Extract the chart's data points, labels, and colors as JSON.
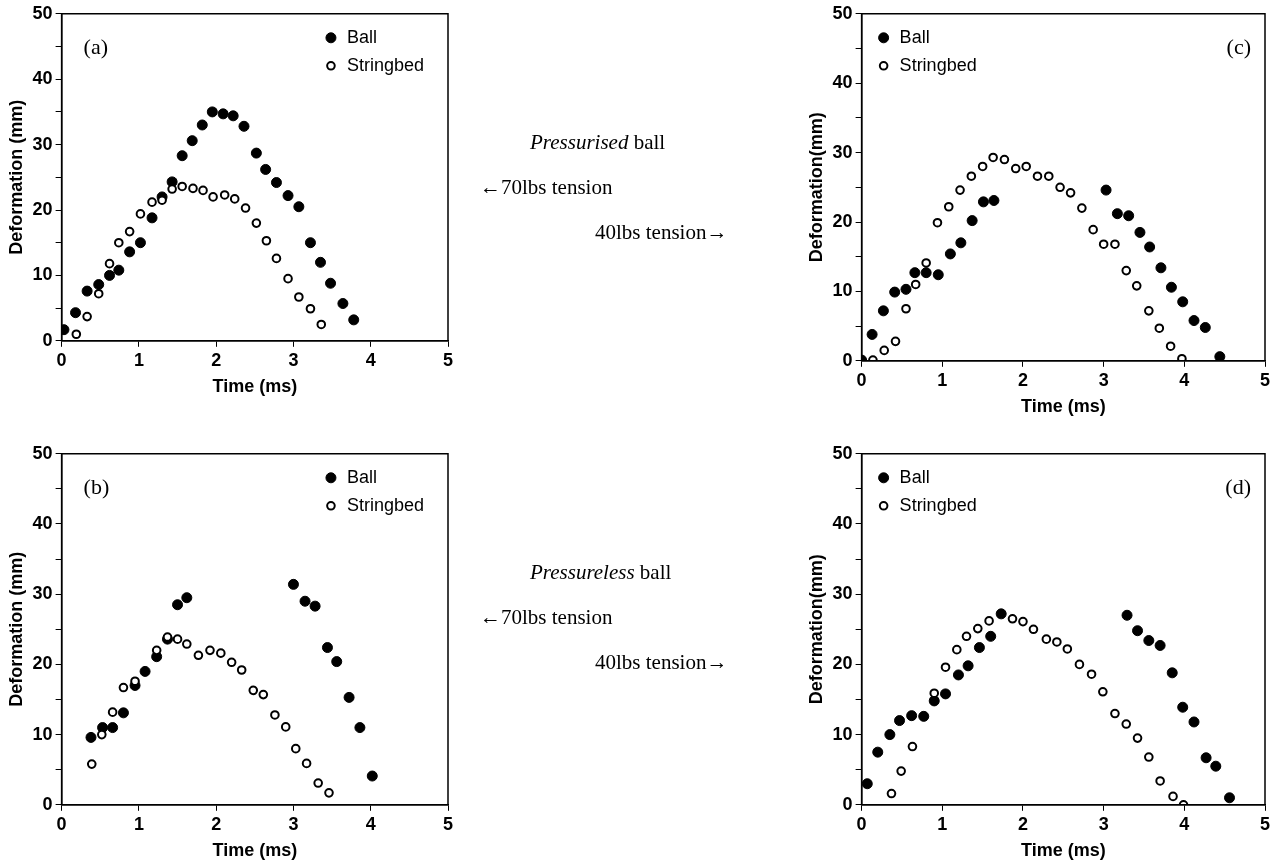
{
  "chart_data": [
    {
      "type": "scatter",
      "xlabel": "Time (ms)",
      "ylabel": "Deformation (mm)",
      "annotations": [
        "(a)"
      ],
      "legend": "top right",
      "marker": "circle",
      "xlim": [
        0,
        5
      ],
      "ylim": [
        0,
        50
      ],
      "xticks": [
        0,
        1,
        2,
        3,
        4,
        5
      ],
      "yticks": [
        0,
        {
          "value": 5,
          "label": null
        },
        10,
        {
          "value": 15,
          "label": null
        },
        20,
        {
          "value": 25,
          "label": null
        },
        30,
        {
          "value": 35,
          "label": null
        },
        40,
        {
          "value": 45,
          "label": null
        },
        50
      ],
      "series": [
        {
          "name": "Ball",
          "color": "#000000",
          "x": [
            0.03,
            0.18,
            0.33,
            0.48,
            0.62,
            0.74,
            0.88,
            1.02,
            1.17,
            1.3,
            1.43,
            1.56,
            1.69,
            1.82,
            1.95,
            2.09,
            2.22,
            2.36,
            2.52,
            2.64,
            2.78,
            2.93,
            3.07,
            3.22,
            3.35,
            3.48,
            3.64,
            3.78
          ],
          "values": [
            1.7,
            4.3,
            7.6,
            8.6,
            10.0,
            10.8,
            13.6,
            15.0,
            18.8,
            22.0,
            24.3,
            28.3,
            30.6,
            33.0,
            35.0,
            34.7,
            34.4,
            32.8,
            28.7,
            26.2,
            24.2,
            22.2,
            20.5,
            15.0,
            12.0,
            8.8,
            5.7,
            3.2
          ]
        },
        {
          "name": "Stringbed",
          "color": "#000000",
          "x": [
            0.19,
            0.33,
            0.48,
            0.62,
            0.74,
            0.88,
            1.02,
            1.17,
            1.3,
            1.43,
            1.56,
            1.7,
            1.83,
            1.96,
            2.11,
            2.24,
            2.38,
            2.52,
            2.65,
            2.78,
            2.93,
            3.07,
            3.22,
            3.36
          ],
          "values": [
            1.0,
            3.7,
            7.2,
            11.8,
            15.0,
            16.7,
            19.4,
            21.2,
            21.5,
            23.2,
            23.6,
            23.3,
            23.0,
            22.0,
            22.3,
            21.7,
            20.3,
            18.0,
            15.3,
            12.6,
            9.5,
            6.7,
            4.9,
            2.5
          ]
        }
      ]
    },
    {
      "type": "other",
      "annotations": [
        "Pressurised ball",
        "←70lbs tension",
        "40lbs tension→"
      ]
    },
    {
      "type": "scatter",
      "xlabel": "Time (ms)",
      "ylabel": "Deformation(mm)",
      "annotations": [
        "(c)"
      ],
      "legend": "top left",
      "marker": "circle",
      "xlim": [
        0,
        5
      ],
      "ylim": [
        0,
        50
      ],
      "xticks": [
        0,
        1,
        2,
        3,
        4,
        5
      ],
      "yticks": [
        0,
        {
          "value": 5,
          "label": null
        },
        10,
        {
          "value": 15,
          "label": null
        },
        20,
        {
          "value": 25,
          "label": null
        },
        30,
        {
          "value": 35,
          "label": null
        },
        40,
        {
          "value": 45,
          "label": null
        },
        50
      ],
      "series": [
        {
          "name": "Ball",
          "color": "#000000",
          "x": [
            0,
            0.13,
            0.27,
            0.41,
            0.55,
            0.66,
            0.8,
            0.95,
            1.1,
            1.23,
            1.37,
            1.51,
            1.64,
            3.03,
            3.17,
            3.31,
            3.45,
            3.57,
            3.71,
            3.84,
            3.98,
            4.12,
            4.26,
            4.44
          ],
          "values": [
            0.1,
            3.8,
            7.2,
            9.9,
            10.3,
            12.7,
            12.7,
            12.4,
            15.4,
            17.0,
            20.2,
            22.9,
            23.1,
            24.6,
            21.2,
            20.9,
            18.5,
            16.4,
            13.4,
            10.6,
            8.5,
            5.8,
            4.8,
            0.6
          ]
        },
        {
          "name": "Stringbed",
          "color": "#000000",
          "x": [
            0.14,
            0.28,
            0.42,
            0.55,
            0.67,
            0.8,
            0.94,
            1.08,
            1.22,
            1.36,
            1.5,
            1.63,
            1.77,
            1.91,
            2.04,
            2.18,
            2.32,
            2.46,
            2.59,
            2.73,
            2.87,
            3.0,
            3.14,
            3.28,
            3.41,
            3.56,
            3.69,
            3.83,
            3.97
          ],
          "values": [
            0.1,
            1.5,
            2.8,
            7.5,
            11.0,
            14.1,
            19.9,
            22.2,
            24.6,
            26.6,
            28.0,
            29.3,
            29.0,
            27.7,
            28.0,
            26.6,
            26.6,
            25.0,
            24.2,
            22.0,
            18.9,
            16.8,
            16.8,
            13.0,
            10.8,
            7.2,
            4.7,
            2.1,
            0.3
          ]
        }
      ]
    },
    {
      "type": "scatter",
      "xlabel": "Time (ms)",
      "ylabel": "Deformation (mm)",
      "annotations": [
        "(b)"
      ],
      "legend": "top right",
      "marker": "circle",
      "xlim": [
        0,
        5
      ],
      "ylim": [
        0,
        50
      ],
      "xticks": [
        0,
        1,
        2,
        3,
        4,
        5
      ],
      "yticks": [
        0,
        {
          "value": 5,
          "label": null
        },
        10,
        {
          "value": 15,
          "label": null
        },
        20,
        {
          "value": 25,
          "label": null
        },
        30,
        {
          "value": 35,
          "label": null
        },
        40,
        {
          "value": 45,
          "label": null
        },
        50
      ],
      "series": [
        {
          "name": "Ball",
          "color": "#000000",
          "x": [
            0.38,
            0.53,
            0.66,
            0.8,
            0.95,
            1.08,
            1.23,
            1.37,
            1.5,
            1.62,
            3.0,
            3.15,
            3.28,
            3.44,
            3.56,
            3.72,
            3.86,
            4.02
          ],
          "values": [
            9.6,
            11.0,
            11.0,
            13.1,
            17.0,
            19.0,
            21.1,
            23.6,
            28.5,
            29.5,
            31.4,
            29.0,
            28.3,
            22.4,
            20.4,
            15.3,
            11.0,
            4.1
          ]
        },
        {
          "name": "Stringbed",
          "color": "#000000",
          "x": [
            0.39,
            0.52,
            0.66,
            0.8,
            0.95,
            1.23,
            1.37,
            1.5,
            1.62,
            1.77,
            1.92,
            2.06,
            2.2,
            2.33,
            2.48,
            2.61,
            2.76,
            2.9,
            3.03,
            3.17,
            3.32,
            3.46
          ],
          "values": [
            5.8,
            10.0,
            13.2,
            16.7,
            17.6,
            22.0,
            23.9,
            23.6,
            22.9,
            21.3,
            22.0,
            21.6,
            20.3,
            19.2,
            16.3,
            15.7,
            12.8,
            11.1,
            8.0,
            5.9,
            3.1,
            1.7
          ]
        }
      ]
    },
    {
      "type": "other",
      "annotations": [
        "Pressureless ball",
        "←70lbs tension",
        "40lbs tension→"
      ]
    },
    {
      "type": "scatter",
      "xlabel": "Time (ms)",
      "ylabel": "Deformation(mm)",
      "annotations": [
        "(d)"
      ],
      "legend": "top left",
      "marker": "circle",
      "xlim": [
        0,
        5
      ],
      "ylim": [
        0,
        50
      ],
      "xticks": [
        0,
        1,
        2,
        3,
        4,
        5
      ],
      "yticks": [
        0,
        {
          "value": 5,
          "label": null
        },
        10,
        {
          "value": 15,
          "label": null
        },
        20,
        {
          "value": 25,
          "label": null
        },
        30,
        {
          "value": 35,
          "label": null
        },
        40,
        {
          "value": 45,
          "label": null
        },
        50
      ],
      "series": [
        {
          "name": "Ball",
          "color": "#000000",
          "x": [
            0.07,
            0.2,
            0.35,
            0.47,
            0.62,
            0.77,
            0.9,
            1.04,
            1.2,
            1.32,
            1.46,
            1.6,
            1.73,
            3.29,
            3.42,
            3.56,
            3.7,
            3.85,
            3.98,
            4.12,
            4.27,
            4.39,
            4.56
          ],
          "values": [
            3.0,
            7.5,
            10.0,
            12.0,
            12.7,
            12.6,
            14.8,
            15.8,
            18.5,
            19.8,
            22.4,
            24.0,
            27.2,
            27.0,
            24.8,
            23.4,
            22.7,
            18.8,
            13.9,
            11.8,
            6.7,
            5.5,
            1.0
          ]
        },
        {
          "name": "Stringbed",
          "color": "#000000",
          "x": [
            0.37,
            0.49,
            0.63,
            0.9,
            1.04,
            1.18,
            1.3,
            1.44,
            1.58,
            1.87,
            2.0,
            2.13,
            2.29,
            2.42,
            2.55,
            2.7,
            2.85,
            2.99,
            3.14,
            3.28,
            3.42,
            3.56,
            3.7,
            3.86,
            3.99
          ],
          "values": [
            1.6,
            4.8,
            8.3,
            15.9,
            19.6,
            22.1,
            24.0,
            25.1,
            26.2,
            26.5,
            26.1,
            25.0,
            23.6,
            23.2,
            22.2,
            20.0,
            18.6,
            16.1,
            13.0,
            11.5,
            9.5,
            6.8,
            3.4,
            1.2,
            0
          ]
        }
      ]
    }
  ]
}
